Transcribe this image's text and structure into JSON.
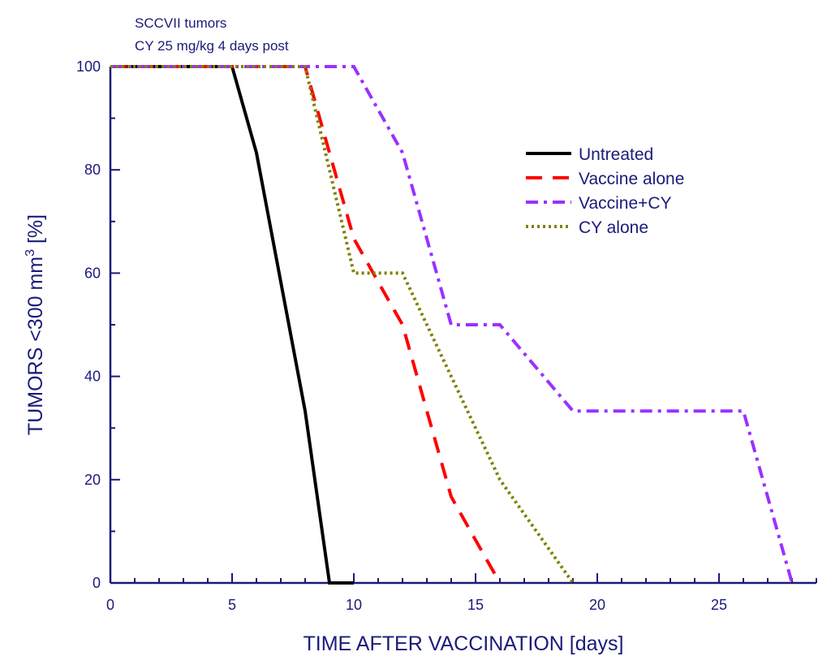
{
  "chart_data": {
    "type": "line",
    "annotations": [
      "SCCVII tumors",
      "CY 25 mg/kg 4 days post"
    ],
    "xlabel": "TIME AFTER VACCINATION [days]",
    "ylabel": {
      "prefix": "TUMORS <300 mm",
      "superscript": "3",
      "suffix": " [%]"
    },
    "xlim": [
      0,
      29
    ],
    "ylim": [
      0,
      100
    ],
    "x_ticks": [
      0,
      5,
      10,
      15,
      20,
      25
    ],
    "y_ticks": [
      0,
      20,
      40,
      60,
      80,
      100
    ],
    "grid": false,
    "legend_position": "right",
    "series": [
      {
        "name": "Untreated",
        "color": "#000000",
        "style": "solid",
        "x": [
          0,
          5,
          6,
          8,
          9,
          10
        ],
        "y": [
          100,
          100,
          83.3,
          33.3,
          0,
          0
        ]
      },
      {
        "name": "Vaccine alone",
        "color": "#ff0000",
        "style": "dash",
        "x": [
          0,
          8,
          9,
          10,
          11,
          12,
          13,
          14,
          15,
          16
        ],
        "y": [
          100,
          100,
          83.3,
          66.7,
          58.3,
          50,
          33.3,
          16.7,
          8.3,
          0
        ]
      },
      {
        "name": "Vaccine+CY",
        "color": "#9b30ff",
        "style": "dashdot",
        "x": [
          0,
          10,
          12,
          14,
          16,
          19,
          26,
          28
        ],
        "y": [
          100,
          100,
          83.3,
          50,
          50,
          33.3,
          33.3,
          0
        ]
      },
      {
        "name": "CY alone",
        "color": "#808000",
        "style": "dot",
        "x": [
          0,
          8,
          10,
          12,
          14,
          16,
          19
        ],
        "y": [
          100,
          100,
          60,
          60,
          40,
          20,
          0
        ]
      }
    ]
  }
}
